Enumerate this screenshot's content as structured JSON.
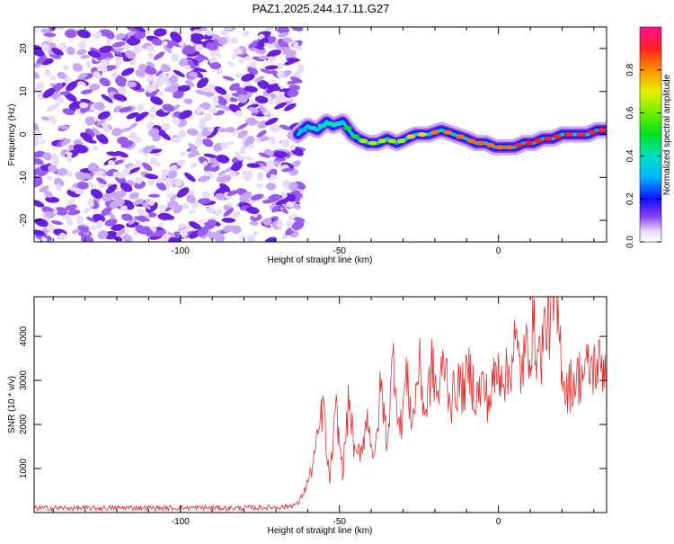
{
  "title": "PAZ1.2025.244.17.11.G27",
  "colors": {
    "line": "#e03030",
    "axis": "#000000",
    "background": "#ffffff",
    "scatter_low": "#e8dcfb",
    "scatter_high": "#7b2fe0"
  },
  "chart_data": [
    {
      "type": "heatmap",
      "name": "spectrogram",
      "xlabel": "Height of straight line (km)",
      "ylabel": "Frequency (Hz)",
      "xlim": [
        -146,
        34
      ],
      "ylim": [
        -25,
        25
      ],
      "xticks": [
        -100,
        -50,
        0
      ],
      "yticks": [
        -20,
        -10,
        0,
        10,
        20
      ],
      "noise_region_x": [
        -146,
        -62
      ],
      "tone_track": {
        "x": [
          -63,
          -60,
          -57,
          -54,
          -52,
          -49,
          -46,
          -44,
          -41,
          -38,
          -35,
          -32,
          -29,
          -26,
          -22,
          -18,
          -14,
          -10,
          -7,
          -4,
          -1,
          2,
          5,
          8,
          11,
          14,
          17,
          20,
          24,
          28,
          31,
          34
        ],
        "freq": [
          0,
          2,
          1,
          3,
          2,
          3,
          0,
          -1,
          -2,
          -2,
          -1,
          -2,
          -1,
          0,
          0,
          1,
          0,
          -1,
          -2,
          -2,
          -3,
          -3,
          -3,
          -2,
          -2,
          -1,
          -1,
          0,
          0,
          0,
          1,
          1
        ],
        "amp": [
          0.15,
          0.3,
          0.35,
          0.4,
          0.35,
          0.45,
          0.55,
          0.5,
          0.6,
          0.55,
          0.65,
          0.6,
          0.7,
          0.75,
          0.8,
          0.85,
          0.8,
          0.85,
          0.9,
          0.85,
          0.9,
          0.88,
          0.9,
          0.92,
          0.9,
          0.93,
          0.92,
          0.95,
          0.95,
          0.95,
          0.95,
          0.95
        ]
      },
      "colorbar": {
        "label": "Normalized spectral amplitude",
        "range": [
          0,
          1
        ],
        "ticks": [
          "0.0",
          "0.2",
          "0.4",
          "0.6",
          "0.8"
        ],
        "tick_values": [
          0.0,
          0.2,
          0.4,
          0.6,
          0.8
        ]
      }
    },
    {
      "type": "line",
      "name": "snr",
      "xlabel": "Height of straight line (km)",
      "ylabel": "SNR (10 * v/v)",
      "xlim": [
        -146,
        34
      ],
      "ylim": [
        0,
        4900
      ],
      "xticks": [
        -100,
        -50,
        0
      ],
      "yticks": [
        1000,
        2000,
        3000,
        4000
      ],
      "series": [
        {
          "name": "SNR",
          "x": [
            -146,
            -135,
            -125,
            -115,
            -105,
            -95,
            -85,
            -75,
            -67,
            -63,
            -61,
            -59,
            -57,
            -55,
            -54,
            -53,
            -51,
            -49,
            -47,
            -45,
            -43,
            -41,
            -39,
            -37,
            -35,
            -33,
            -31,
            -29,
            -27,
            -25,
            -23,
            -21,
            -19,
            -17,
            -15,
            -13,
            -11,
            -9,
            -7,
            -5,
            -3,
            -1,
            1,
            3,
            5,
            7,
            9,
            11,
            13,
            15,
            17,
            18,
            19,
            21,
            24,
            27,
            30,
            34
          ],
          "y": [
            100,
            100,
            100,
            110,
            100,
            110,
            100,
            110,
            130,
            200,
            500,
            900,
            1600,
            2500,
            1200,
            800,
            2300,
            900,
            2600,
            1200,
            1500,
            2200,
            1100,
            2900,
            1600,
            3600,
            1800,
            3100,
            2000,
            3400,
            2200,
            3300,
            2600,
            3500,
            2500,
            2900,
            2800,
            3200,
            2600,
            2900,
            2500,
            3100,
            3300,
            3000,
            3900,
            3200,
            3700,
            4100,
            3500,
            4300,
            4500,
            4700,
            4100,
            2800,
            3000,
            3200,
            3300,
            3400
          ]
        }
      ]
    }
  ]
}
